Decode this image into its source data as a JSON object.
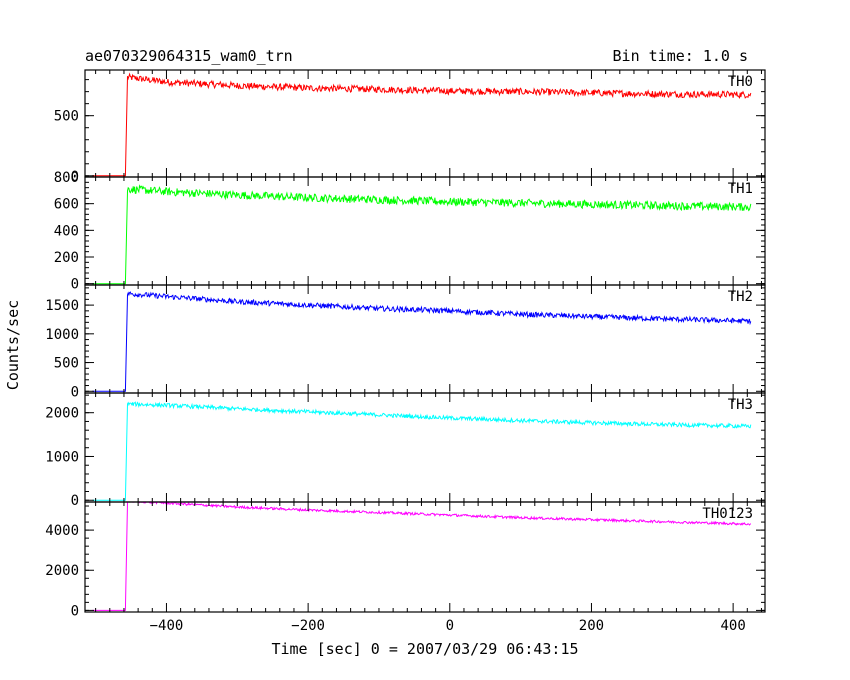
{
  "chart_data": {
    "type": "line",
    "title": "ae070329064315_wam0_trn",
    "subtitle": "Bin time: 1.0 s",
    "xlabel": "Time [sec] 0 = 2007/03/29 06:43:15",
    "ylabel": "Counts/sec",
    "xlim": [
      -515,
      445
    ],
    "xticks": [
      -400,
      -200,
      0,
      200,
      400
    ],
    "x_tick_labels": [
      "−400",
      "−200",
      "0",
      "200",
      "400"
    ],
    "x_range": [
      -505,
      425
    ],
    "onset_x": -458,
    "grid": false,
    "panels": [
      {
        "name": "TH0",
        "color": "#ff0000",
        "ylim": [
          -10,
          880
        ],
        "yticks": [
          0,
          500
        ],
        "y_tick_labels": [
          "0",
          "500"
        ],
        "baseline": 0,
        "points": [
          [
            -505,
            0
          ],
          [
            -458,
            0
          ],
          [
            -455,
            820
          ],
          [
            -400,
            780
          ],
          [
            -300,
            750
          ],
          [
            -200,
            730
          ],
          [
            -100,
            720
          ],
          [
            0,
            705
          ],
          [
            100,
            700
          ],
          [
            200,
            690
          ],
          [
            300,
            680
          ],
          [
            425,
            675
          ]
        ],
        "noise": 28
      },
      {
        "name": "TH1",
        "color": "#00ff00",
        "ylim": [
          -10,
          800
        ],
        "yticks": [
          0,
          200,
          400,
          600,
          800
        ],
        "y_tick_labels": [
          "0",
          "200",
          "400",
          "600",
          "800"
        ],
        "baseline": 0,
        "points": [
          [
            -505,
            0
          ],
          [
            -458,
            0
          ],
          [
            -455,
            710
          ],
          [
            -400,
            690
          ],
          [
            -300,
            665
          ],
          [
            -200,
            645
          ],
          [
            -100,
            630
          ],
          [
            0,
            615
          ],
          [
            100,
            605
          ],
          [
            200,
            595
          ],
          [
            300,
            585
          ],
          [
            425,
            575
          ]
        ],
        "noise": 30
      },
      {
        "name": "TH2",
        "color": "#0000ff",
        "ylim": [
          -30,
          1850
        ],
        "yticks": [
          0,
          500,
          1000,
          1500
        ],
        "y_tick_labels": [
          "0",
          "500",
          "1000",
          "1500"
        ],
        "baseline": 0,
        "points": [
          [
            -505,
            0
          ],
          [
            -458,
            0
          ],
          [
            -455,
            1700
          ],
          [
            -400,
            1650
          ],
          [
            -300,
            1560
          ],
          [
            -200,
            1500
          ],
          [
            -100,
            1440
          ],
          [
            0,
            1400
          ],
          [
            100,
            1340
          ],
          [
            200,
            1300
          ],
          [
            300,
            1260
          ],
          [
            425,
            1220
          ]
        ],
        "noise": 45
      },
      {
        "name": "TH3",
        "color": "#00ffff",
        "ylim": [
          -40,
          2450
        ],
        "yticks": [
          0,
          1000,
          2000
        ],
        "y_tick_labels": [
          "0",
          "1000",
          "2000"
        ],
        "baseline": 0,
        "points": [
          [
            -505,
            0
          ],
          [
            -458,
            0
          ],
          [
            -455,
            2200
          ],
          [
            -400,
            2170
          ],
          [
            -300,
            2090
          ],
          [
            -200,
            2020
          ],
          [
            -100,
            1950
          ],
          [
            0,
            1880
          ],
          [
            100,
            1820
          ],
          [
            200,
            1770
          ],
          [
            300,
            1730
          ],
          [
            425,
            1690
          ]
        ],
        "noise": 45
      },
      {
        "name": "TH0123",
        "color": "#ff00ff",
        "ylim": [
          -80,
          5400
        ],
        "yticks": [
          0,
          2000,
          4000
        ],
        "y_tick_labels": [
          "0",
          "2000",
          "4000"
        ],
        "baseline": 0,
        "points": [
          [
            -505,
            0
          ],
          [
            -458,
            0
          ],
          [
            -455,
            5450
          ],
          [
            -400,
            5350
          ],
          [
            -300,
            5150
          ],
          [
            -200,
            5000
          ],
          [
            -100,
            4880
          ],
          [
            0,
            4750
          ],
          [
            100,
            4620
          ],
          [
            200,
            4520
          ],
          [
            300,
            4420
          ],
          [
            425,
            4300
          ]
        ],
        "noise": 60
      }
    ]
  }
}
